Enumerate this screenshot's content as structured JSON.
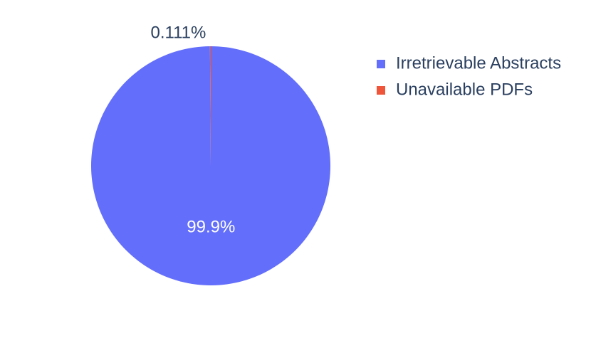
{
  "chart_data": {
    "type": "pie",
    "categories": [
      "Irretrievable Abstracts",
      "Unavailable PDFs"
    ],
    "values": [
      99.9,
      0.111
    ],
    "value_labels": [
      "99.9%",
      "0.111%"
    ],
    "colors": [
      "#636efa",
      "#ef553b"
    ],
    "legend": "top-right"
  }
}
